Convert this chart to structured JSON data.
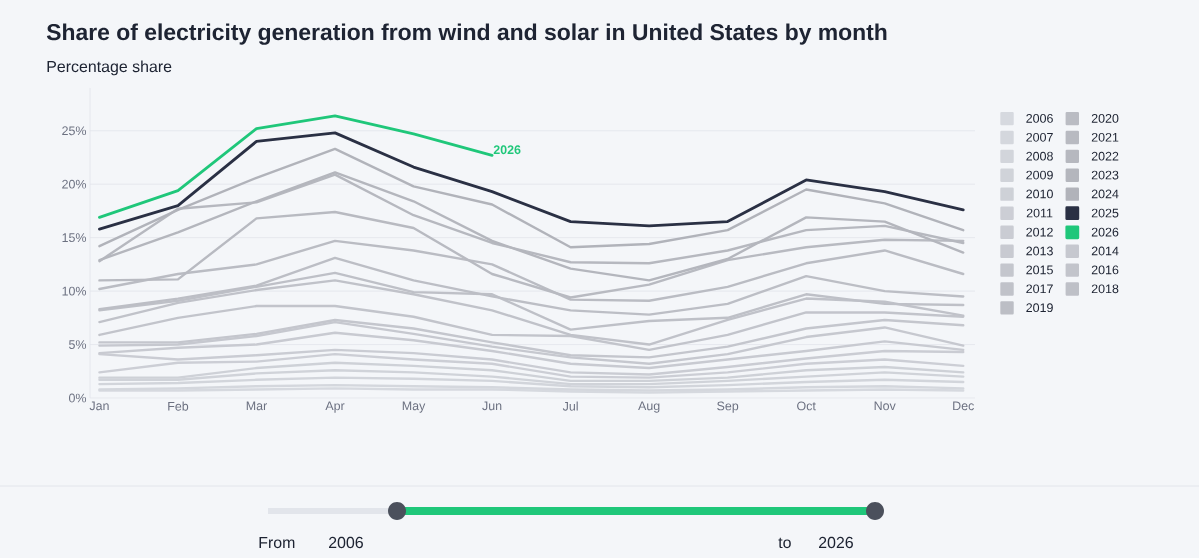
{
  "chart_data": {
    "type": "line",
    "title": "Share of electricity generation from wind and solar in United States by month",
    "subtitle": "Percentage share",
    "categories": [
      "Jan",
      "Feb",
      "Mar",
      "Apr",
      "May",
      "Jun",
      "Jul",
      "Aug",
      "Sep",
      "Oct",
      "Nov",
      "Dec"
    ],
    "ylim": [
      0,
      29
    ],
    "yticks": [
      {
        "value": 0,
        "label": "0%"
      },
      {
        "value": 5,
        "label": "5%"
      },
      {
        "value": 10,
        "label": "10%"
      },
      {
        "value": 15,
        "label": "15%"
      },
      {
        "value": 20,
        "label": "20%"
      },
      {
        "value": 25,
        "label": "25%"
      }
    ],
    "grid": "y",
    "legend": "right",
    "marker": "none",
    "line_style": "solid",
    "series": [
      {
        "name": "2006",
        "color": "#d6d9df",
        "values": [
          0.7,
          0.7,
          0.8,
          0.9,
          0.8,
          0.8,
          0.6,
          0.5,
          0.6,
          0.7,
          0.8,
          0.7
        ]
      },
      {
        "name": "2007",
        "color": "#d4d7dd",
        "values": [
          0.8,
          0.9,
          1.1,
          1.2,
          1.1,
          1.0,
          0.8,
          0.7,
          0.8,
          1.0,
          1.1,
          0.9
        ]
      },
      {
        "name": "2008",
        "color": "#d2d5db",
        "values": [
          1.3,
          1.4,
          1.7,
          1.9,
          1.8,
          1.6,
          1.1,
          1.0,
          1.2,
          1.5,
          1.7,
          1.5
        ]
      },
      {
        "name": "2009",
        "color": "#d0d3d9",
        "values": [
          1.7,
          1.7,
          2.3,
          2.6,
          2.4,
          2.0,
          1.3,
          1.3,
          1.6,
          2.0,
          2.4,
          2.0
        ]
      },
      {
        "name": "2010",
        "color": "#ced1d7",
        "values": [
          1.9,
          1.9,
          2.8,
          3.3,
          3.0,
          2.6,
          1.6,
          1.6,
          1.9,
          2.6,
          2.9,
          2.4
        ]
      },
      {
        "name": "2011",
        "color": "#ccced5",
        "values": [
          2.4,
          3.3,
          3.4,
          4.1,
          3.6,
          3.2,
          2.0,
          1.9,
          2.4,
          3.2,
          3.6,
          3.0
        ]
      },
      {
        "name": "2012",
        "color": "#caccd3",
        "values": [
          4.1,
          3.6,
          4.0,
          4.5,
          4.2,
          3.6,
          2.4,
          2.2,
          2.9,
          3.7,
          4.4,
          4.3
        ]
      },
      {
        "name": "2013",
        "color": "#c8cad1",
        "values": [
          4.2,
          4.7,
          5.0,
          6.1,
          5.4,
          4.4,
          3.2,
          2.8,
          3.6,
          4.4,
          5.3,
          4.5
        ]
      },
      {
        "name": "2014",
        "color": "#c6c8cf",
        "values": [
          4.9,
          5.0,
          5.8,
          7.1,
          6.0,
          4.8,
          3.8,
          3.2,
          4.1,
          5.7,
          6.6,
          4.9
        ]
      },
      {
        "name": "2015",
        "color": "#c4c6cd",
        "values": [
          5.2,
          5.2,
          6.0,
          7.3,
          6.5,
          5.2,
          4.0,
          3.8,
          4.8,
          6.5,
          7.3,
          6.8
        ]
      },
      {
        "name": "2016",
        "color": "#c2c4cb",
        "values": [
          5.9,
          7.5,
          8.6,
          8.6,
          7.6,
          5.9,
          5.8,
          4.5,
          5.9,
          8.0,
          8.0,
          7.6
        ]
      },
      {
        "name": "2017",
        "color": "#c0c2c9",
        "values": [
          7.1,
          8.9,
          10.1,
          11.0,
          9.7,
          8.2,
          5.9,
          5.0,
          7.3,
          9.3,
          9.0,
          7.7
        ]
      },
      {
        "name": "2018",
        "color": "#bec0c7",
        "values": [
          8.2,
          9.1,
          10.4,
          11.7,
          9.9,
          9.7,
          6.4,
          7.2,
          7.5,
          9.7,
          8.8,
          8.7
        ]
      },
      {
        "name": "2019",
        "color": "#bcbec5",
        "values": [
          8.3,
          9.3,
          10.5,
          13.1,
          11.0,
          9.5,
          8.2,
          7.8,
          8.8,
          11.4,
          10.0,
          9.5
        ]
      },
      {
        "name": "2020",
        "color": "#babcc3",
        "values": [
          10.2,
          11.6,
          12.5,
          14.7,
          13.8,
          12.5,
          9.2,
          9.1,
          10.4,
          12.6,
          13.8,
          11.6
        ]
      },
      {
        "name": "2021",
        "color": "#b8bac1",
        "values": [
          11.0,
          11.1,
          16.8,
          17.4,
          15.9,
          11.6,
          9.4,
          10.6,
          12.9,
          14.1,
          14.8,
          14.7
        ]
      },
      {
        "name": "2022",
        "color": "#b6b8bf",
        "values": [
          12.8,
          17.7,
          18.3,
          20.9,
          17.1,
          14.5,
          12.7,
          12.6,
          13.8,
          15.7,
          16.1,
          14.5
        ]
      },
      {
        "name": "2023",
        "color": "#b4b6bd",
        "values": [
          12.9,
          15.5,
          18.4,
          21.1,
          18.4,
          14.7,
          12.1,
          11.0,
          13.0,
          16.9,
          16.5,
          13.6
        ]
      },
      {
        "name": "2024",
        "color": "#b1b3ba",
        "values": [
          14.2,
          17.6,
          20.6,
          23.3,
          19.8,
          18.1,
          14.1,
          14.4,
          15.7,
          19.5,
          18.2,
          15.7
        ]
      },
      {
        "name": "2025",
        "color": "#2a3044",
        "values": [
          15.8,
          18.0,
          24.0,
          24.8,
          21.6,
          19.3,
          16.5,
          16.1,
          16.5,
          20.4,
          19.3,
          17.6
        ]
      },
      {
        "name": "2026",
        "color": "#1fc77a",
        "values": [
          16.9,
          19.4,
          25.2,
          26.4,
          24.7,
          22.7,
          null,
          null,
          null,
          null,
          null,
          null
        ]
      }
    ],
    "annotations": [
      "From",
      "2006",
      "to",
      "2026"
    ]
  }
}
